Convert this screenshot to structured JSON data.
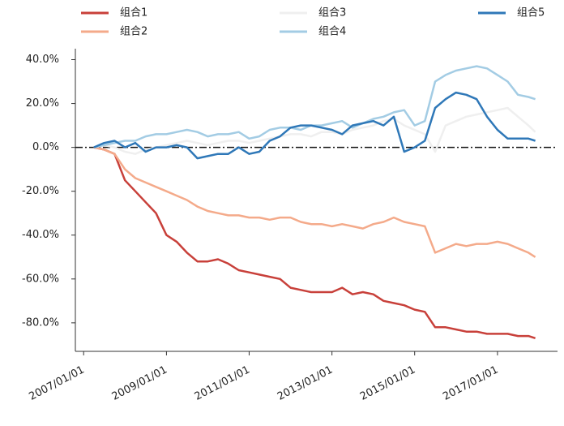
{
  "chart_data": {
    "type": "line",
    "x": [
      "2007/04/01",
      "2007/07/01",
      "2007/10/01",
      "2008/01/01",
      "2008/04/01",
      "2008/07/01",
      "2008/10/01",
      "2009/01/01",
      "2009/04/01",
      "2009/07/01",
      "2009/10/01",
      "2010/01/01",
      "2010/04/01",
      "2010/07/01",
      "2010/10/01",
      "2011/01/01",
      "2011/04/01",
      "2011/07/01",
      "2011/10/01",
      "2012/01/01",
      "2012/04/01",
      "2012/07/01",
      "2012/10/01",
      "2013/01/01",
      "2013/04/01",
      "2013/07/01",
      "2013/10/01",
      "2014/01/01",
      "2014/04/01",
      "2014/07/01",
      "2014/10/01",
      "2015/01/01",
      "2015/04/01",
      "2015/07/01",
      "2015/10/01",
      "2016/01/01",
      "2016/04/01",
      "2016/07/01",
      "2016/10/01",
      "2017/01/01",
      "2017/04/01",
      "2017/07/01",
      "2017/10/01",
      "2017/12/01"
    ],
    "series": [
      {
        "name": "组合1",
        "color": "#c8403a",
        "values": [
          0,
          -1,
          -3,
          -15,
          -20,
          -25,
          -30,
          -40,
          -43,
          -48,
          -52,
          -52,
          -51,
          -53,
          -56,
          -57,
          -58,
          -59,
          -60,
          -64,
          -65,
          -66,
          -66,
          -66,
          -64,
          -67,
          -66,
          -67,
          -70,
          -71,
          -72,
          -74,
          -75,
          -82,
          -82,
          -83,
          -84,
          -84,
          -85,
          -85,
          -85,
          -86,
          -86,
          -87
        ]
      },
      {
        "name": "组合2",
        "color": "#f4aa8a",
        "values": [
          0,
          -1,
          -3,
          -10,
          -14,
          -16,
          -18,
          -20,
          -22,
          -24,
          -27,
          -29,
          -30,
          -31,
          -31,
          -32,
          -32,
          -33,
          -32,
          -32,
          -34,
          -35,
          -35,
          -36,
          -35,
          -36,
          -37,
          -35,
          -34,
          -32,
          -34,
          -35,
          -36,
          -48,
          -46,
          -44,
          -45,
          -44,
          -44,
          -43,
          -44,
          -46,
          -48,
          -50
        ]
      },
      {
        "name": "组合3",
        "color": "#efefef",
        "values": [
          0,
          1,
          0,
          -2,
          -3,
          -1,
          0,
          1,
          2,
          3,
          2,
          1,
          2,
          3,
          3,
          2,
          3,
          4,
          5,
          6,
          6,
          5,
          7,
          7,
          6,
          8,
          9,
          10,
          12,
          13,
          10,
          8,
          6,
          -2,
          10,
          12,
          14,
          15,
          16,
          17,
          18,
          14,
          10,
          7
        ]
      },
      {
        "name": "组合4",
        "color": "#a3cce4",
        "values": [
          0,
          1,
          2,
          3,
          3,
          5,
          6,
          6,
          7,
          8,
          7,
          5,
          6,
          6,
          7,
          4,
          5,
          8,
          9,
          9,
          8,
          10,
          10,
          11,
          12,
          9,
          11,
          13,
          14,
          16,
          17,
          10,
          12,
          30,
          33,
          35,
          36,
          37,
          36,
          33,
          30,
          24,
          23,
          22
        ]
      },
      {
        "name": "组合5",
        "color": "#2f78b8",
        "values": [
          0,
          2,
          3,
          0,
          2,
          -2,
          0,
          0,
          1,
          0,
          -5,
          -4,
          -3,
          -3,
          0,
          -3,
          -2,
          3,
          5,
          9,
          10,
          10,
          9,
          8,
          6,
          10,
          11,
          12,
          10,
          14,
          -2,
          0,
          3,
          18,
          22,
          25,
          24,
          22,
          14,
          8,
          4,
          4,
          4,
          3
        ]
      }
    ],
    "xlim": [
      "2006/10/20",
      "2018/06/15"
    ],
    "xticks": [
      "2007/01/01",
      "2009/01/01",
      "2011/01/01",
      "2013/01/01",
      "2015/01/01",
      "2017/01/01"
    ],
    "ylim": [
      -93,
      45
    ],
    "yticks": [
      {
        "value": 40,
        "label": "40.0%"
      },
      {
        "value": 20,
        "label": "20.0%"
      },
      {
        "value": 0,
        "label": "0.0%"
      },
      {
        "value": -20,
        "label": "-20.0%"
      },
      {
        "value": -40,
        "label": "-40.0%"
      },
      {
        "value": -60,
        "label": "-60.0%"
      },
      {
        "value": -80,
        "label": "-80.0%"
      }
    ]
  }
}
